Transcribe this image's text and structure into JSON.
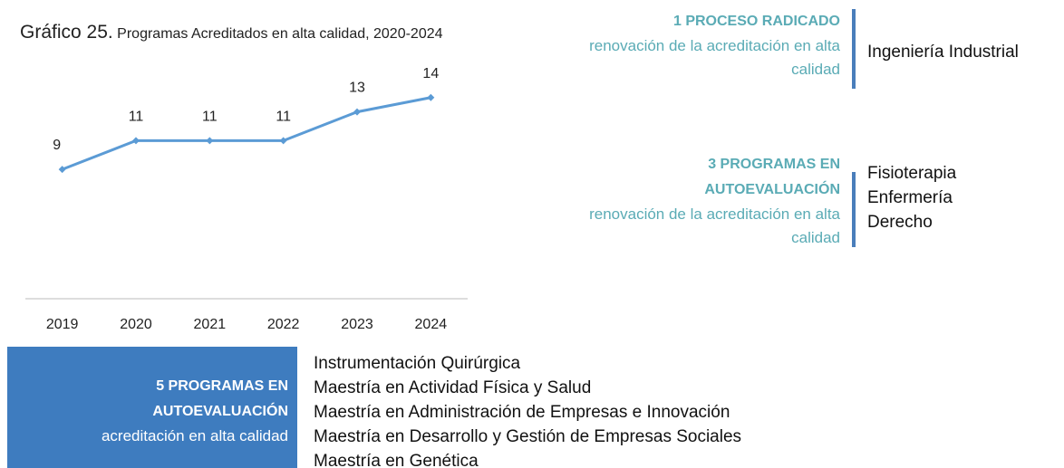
{
  "chart_data": {
    "type": "line",
    "title": "Gráfico 25.",
    "subtitle": "Programas Acreditados en alta calidad, 2020-2024",
    "categories": [
      "2019",
      "2020",
      "2021",
      "2022",
      "2023",
      "2024"
    ],
    "values": [
      9,
      11,
      11,
      11,
      13,
      14
    ],
    "color": "#5b9bd5",
    "ylim": [
      0,
      16
    ]
  },
  "blocks": [
    {
      "heading": "1 PROCESO RADICADO",
      "subtext": "renovación de la acreditación en alta calidad",
      "items": [
        "Ingeniería Industrial"
      ]
    },
    {
      "heading": "3 PROGRAMAS EN AUTOEVALUACIÓN",
      "subtext": "renovación de la acreditación en alta calidad",
      "items": [
        "Fisioterapia",
        "Enfermería",
        "Derecho"
      ]
    },
    {
      "heading": "5 PROGRAMAS EN AUTOEVALUACIÓN",
      "subtext": "acreditación en alta calidad",
      "items": [
        "Instrumentación Quirúrgica",
        "Maestría en Actividad Física y Salud",
        "Maestría en Administración de Empresas e Innovación",
        "Maestría en Desarrollo y Gestión de Empresas Sociales",
        "Maestría en Genética"
      ]
    }
  ]
}
